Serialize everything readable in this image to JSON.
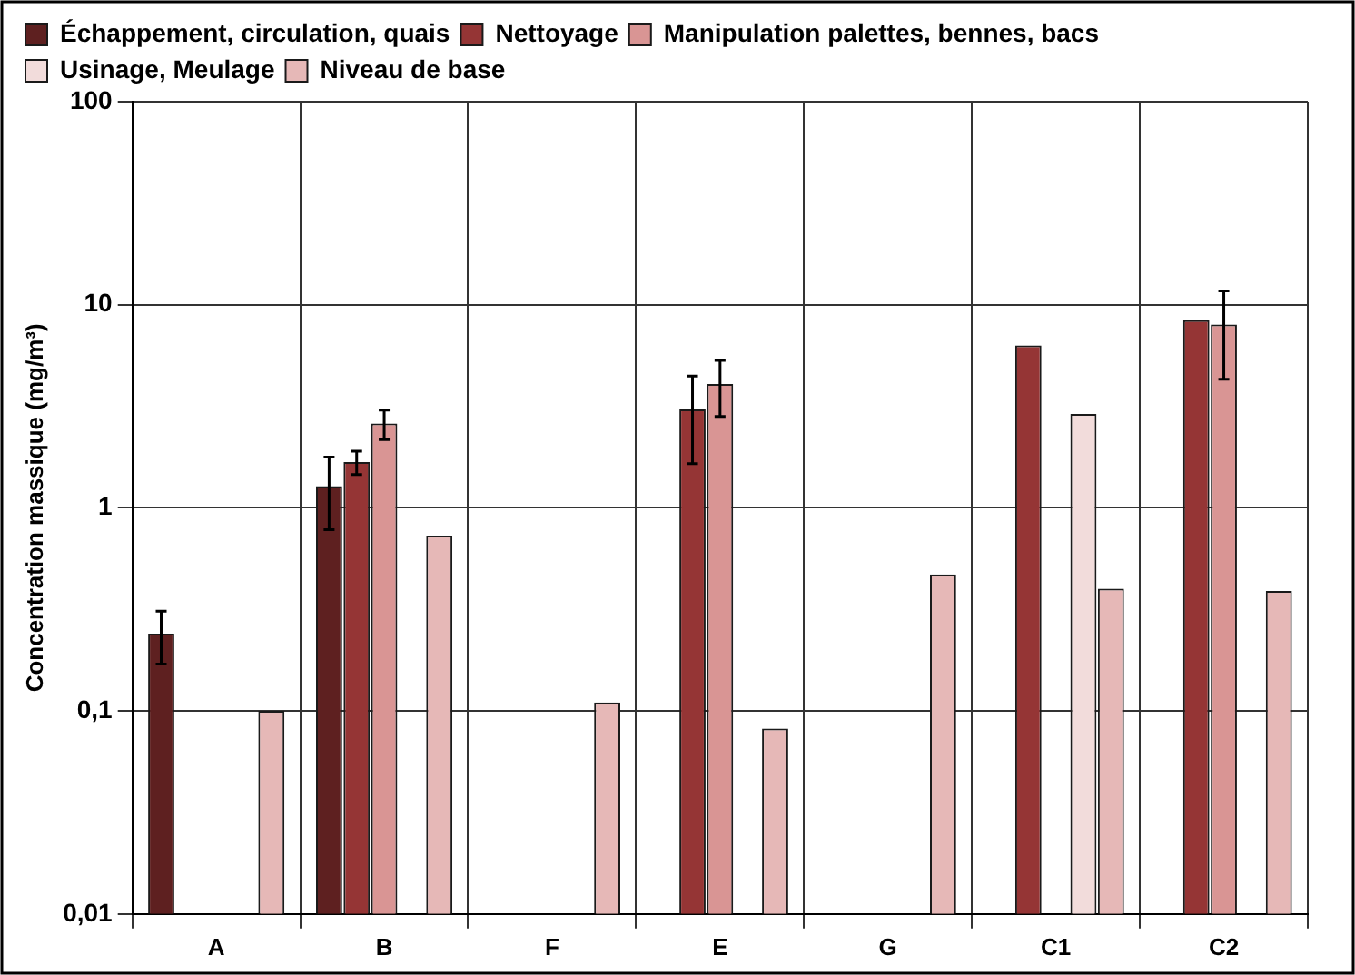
{
  "chart_data": {
    "type": "bar",
    "ylabel": "Concentration massique (mg/m³)",
    "categories": [
      "A",
      "B",
      "F",
      "E",
      "G",
      "C1",
      "C2"
    ],
    "log": "y",
    "ylim": [
      0.01,
      100
    ],
    "yticks": [
      {
        "value": 0.01,
        "label": "0,01"
      },
      {
        "value": 0.1,
        "label": "0,1"
      },
      1,
      10,
      100
    ],
    "grid": true,
    "legend": "top left",
    "series": [
      {
        "name": "Échappement, circulation, quais",
        "color": "#5e2020",
        "values": [
          0.24,
          1.28,
          null,
          null,
          null,
          null,
          null
        ],
        "errors": [
          0.07,
          0.5,
          null,
          null,
          null,
          null,
          null
        ]
      },
      {
        "name": "Nettoyage",
        "color": "#953535",
        "values": [
          null,
          1.68,
          null,
          3.05,
          null,
          6.3,
          8.4
        ],
        "errors": [
          null,
          0.22,
          null,
          1.4,
          null,
          null,
          null
        ]
      },
      {
        "name": "Manipulation palettes, bennes, bacs",
        "color": "#d99594",
        "values": [
          null,
          2.6,
          null,
          4.07,
          null,
          null,
          8.0
        ],
        "errors": [
          null,
          0.43,
          null,
          1.25,
          null,
          null,
          3.7
        ]
      },
      {
        "name": "Usinage, Meulage",
        "color": "#f2dcdb",
        "values": [
          null,
          null,
          null,
          null,
          null,
          2.9,
          null
        ]
      },
      {
        "name": "Niveau de base",
        "color": "#e6b8b7",
        "values": [
          0.1,
          0.73,
          0.11,
          0.082,
          0.47,
          0.4,
          0.39
        ]
      }
    ]
  }
}
